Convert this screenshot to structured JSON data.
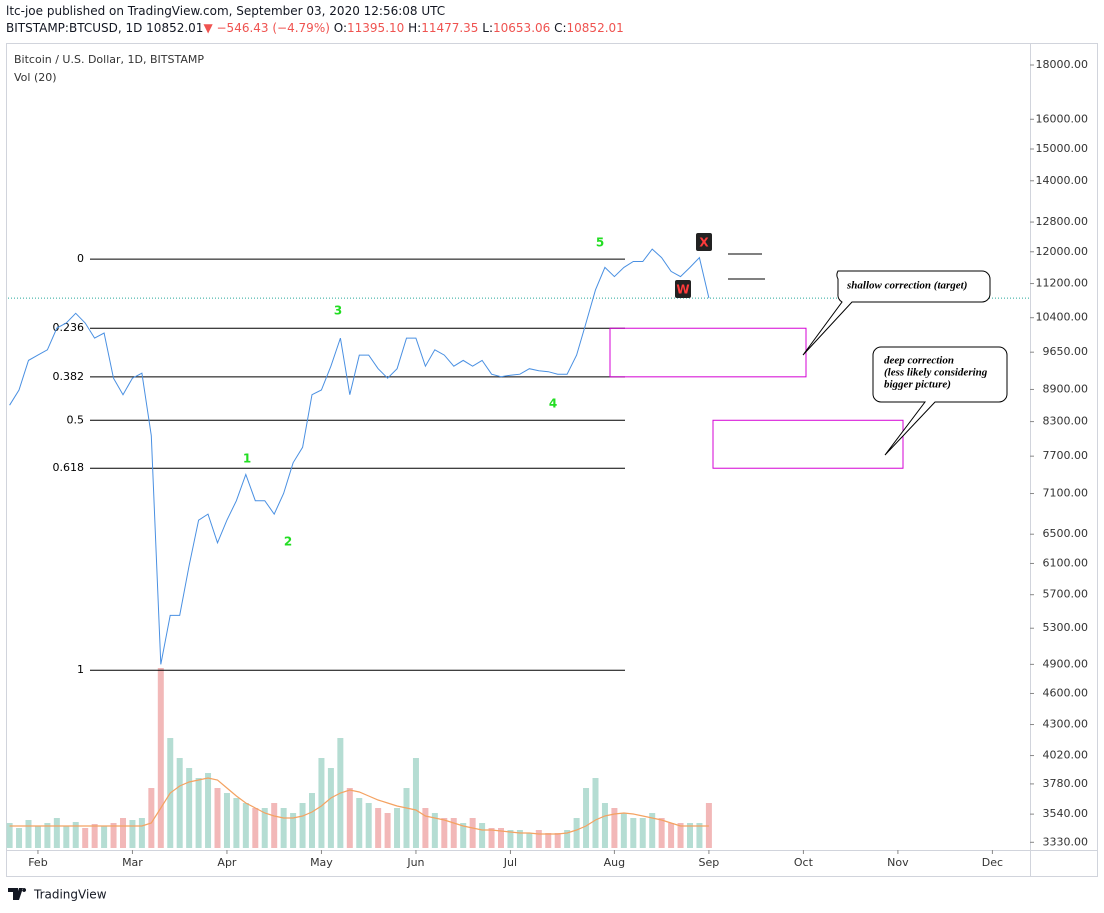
{
  "header": {
    "line1": "ltc-joe published on TradingView.com, September 03, 2020 12:56:08 UTC",
    "symbol": "BITSTAMP:BTCUSD, 1D",
    "last": "10852.01",
    "change": "−546.43 (−4.79%)",
    "ohlc": [
      {
        "key": "O:",
        "value": "11395.10"
      },
      {
        "key": "H:",
        "value": "11477.35"
      },
      {
        "key": "L:",
        "value": "10653.06"
      },
      {
        "key": "C:",
        "value": "10852.01"
      }
    ]
  },
  "chart_data": {
    "type": "line",
    "title": "Bitcoin / U.S. Dollar, 1D, BITSTAMP",
    "subtitle": "Vol (20)",
    "log_scale": true,
    "color": "#4a90e2",
    "categories": [
      null,
      null,
      null,
      "Feb",
      null,
      null,
      null,
      null,
      null,
      null,
      null,
      null,
      null,
      "Mar",
      null,
      null,
      null,
      null,
      null,
      null,
      null,
      null,
      null,
      "Apr",
      null,
      null,
      null,
      null,
      null,
      null,
      null,
      null,
      null,
      "May",
      null,
      null,
      null,
      null,
      null,
      null,
      null,
      null,
      null,
      "Jun",
      null,
      null,
      null,
      null,
      null,
      null,
      null,
      null,
      null,
      "Jul",
      null,
      null,
      null,
      null,
      null,
      null,
      null,
      null,
      null,
      null,
      "Aug",
      null,
      null,
      null,
      null,
      null,
      null,
      null,
      null,
      null,
      "Sep",
      null,
      null,
      null,
      null,
      null,
      null,
      null,
      null,
      null,
      "Oct",
      null,
      null,
      null,
      null,
      null,
      null,
      null,
      null,
      null,
      "Nov",
      null,
      null,
      null,
      null,
      null,
      null,
      null,
      null,
      null,
      "Dec"
    ],
    "values": [
      8600,
      8890,
      9480,
      9590,
      9700,
      10170,
      10280,
      10500,
      10280,
      9950,
      10060,
      9120,
      8800,
      9120,
      9220,
      8050,
      4900,
      5450,
      5450,
      6070,
      6700,
      6790,
      6380,
      6700,
      6990,
      7400,
      6990,
      6990,
      6790,
      7100,
      7590,
      7850,
      8800,
      8890,
      9360,
      9950,
      8800,
      9590,
      9590,
      9310,
      9120,
      9310,
      9950,
      9950,
      9360,
      9700,
      9590,
      9360,
      9480,
      9360,
      9480,
      9200,
      9150,
      9180,
      9200,
      9310,
      9270,
      9250,
      9200,
      9200,
      9590,
      10280,
      11050,
      11600,
      11370,
      11600,
      11750,
      11750,
      12070,
      11850,
      11500,
      11370,
      11600,
      11850,
      10852.01,
      null,
      null,
      null,
      null,
      null,
      null,
      null,
      null,
      null,
      null,
      null,
      null,
      null,
      null,
      null,
      null,
      null,
      null,
      null,
      null,
      null,
      null,
      null,
      null,
      null,
      null,
      null,
      null,
      null,
      null
    ],
    "ylim": [
      3289,
      18840
    ],
    "yticks": [
      {
        "value": 18000,
        "label": "18000.00"
      },
      {
        "value": 16000,
        "label": "16000.00"
      },
      {
        "value": 15000,
        "label": "15000.00"
      },
      {
        "value": 14000,
        "label": "14000.00"
      },
      {
        "value": 12800,
        "label": "12800.00"
      },
      {
        "value": 12000,
        "label": "12000.00"
      },
      {
        "value": 11200,
        "label": "11200.00"
      },
      {
        "value": 10400,
        "label": "10400.00"
      },
      {
        "value": 9650,
        "label": "9650.00"
      },
      {
        "value": 8900,
        "label": "8900.00"
      },
      {
        "value": 8300,
        "label": "8300.00"
      },
      {
        "value": 7700,
        "label": "7700.00"
      },
      {
        "value": 7100,
        "label": "7100.00"
      },
      {
        "value": 6500,
        "label": "6500.00"
      },
      {
        "value": 6100,
        "label": "6100.00"
      },
      {
        "value": 5700,
        "label": "5700.00"
      },
      {
        "value": 5300,
        "label": "5300.00"
      },
      {
        "value": 4900,
        "label": "4900.00"
      },
      {
        "value": 4600,
        "label": "4600.00"
      },
      {
        "value": 4300,
        "label": "4300.00"
      },
      {
        "value": 4020,
        "label": "4020.00"
      },
      {
        "value": 3780,
        "label": "3780.00"
      },
      {
        "value": 3540,
        "label": "3540.00"
      },
      {
        "value": 3330,
        "label": "3330.00"
      }
    ],
    "volume": {
      "ylim": [
        0,
        200
      ],
      "up_color": "#b5ddd3",
      "down_color": "#f2b8b8",
      "ma_color": "#f4a261",
      "values": [
        25,
        20,
        28,
        22,
        25,
        30,
        22,
        26,
        20,
        24,
        22,
        25,
        30,
        28,
        30,
        60,
        180,
        110,
        90,
        80,
        70,
        75,
        60,
        55,
        50,
        45,
        40,
        40,
        45,
        40,
        35,
        45,
        55,
        90,
        80,
        110,
        60,
        50,
        45,
        40,
        35,
        40,
        60,
        90,
        40,
        35,
        30,
        30,
        25,
        30,
        25,
        20,
        20,
        18,
        18,
        15,
        18,
        15,
        15,
        18,
        30,
        60,
        70,
        45,
        40,
        35,
        30,
        30,
        35,
        30,
        25,
        25,
        25,
        25,
        45,
        null,
        null,
        null,
        null,
        null,
        null,
        null,
        null,
        null,
        null,
        null,
        null,
        null,
        null,
        null,
        null,
        null,
        null,
        null,
        null,
        null,
        null,
        null,
        null,
        null,
        null,
        null,
        null,
        null,
        null
      ],
      "ma_values": [
        22,
        22,
        22,
        22,
        22,
        22,
        22,
        22,
        22,
        22,
        22,
        22,
        22,
        22,
        22,
        25,
        40,
        55,
        62,
        66,
        68,
        70,
        68,
        60,
        52,
        45,
        40,
        35,
        32,
        30,
        30,
        32,
        36,
        42,
        50,
        55,
        58,
        56,
        52,
        48,
        45,
        42,
        40,
        38,
        32,
        30,
        28,
        25,
        22,
        20,
        18,
        18,
        17,
        16,
        15,
        15,
        14,
        14,
        14,
        15,
        18,
        22,
        28,
        32,
        34,
        35,
        34,
        32,
        30,
        28,
        25,
        22,
        22,
        22,
        22,
        null,
        null,
        null,
        null,
        null,
        null,
        null,
        null,
        null,
        null,
        null,
        null,
        null,
        null,
        null,
        null,
        null,
        null,
        null,
        null,
        null,
        null,
        null,
        null,
        null,
        null,
        null,
        null,
        null,
        null
      ]
    },
    "fib_levels": [
      {
        "ratio": 0,
        "price": 11810
      },
      {
        "ratio": 0.236,
        "price": 10165
      },
      {
        "ratio": 0.382,
        "price": 9147
      },
      {
        "ratio": 0.5,
        "price": 8324
      },
      {
        "ratio": 0.618,
        "price": 7501
      },
      {
        "ratio": 1,
        "price": 4838
      }
    ],
    "wave_labels": [
      "1",
      "2",
      "3",
      "4",
      "5"
    ],
    "corrective_labels": [
      "X",
      "W"
    ],
    "callouts": {
      "shallow": "shallow correction (target)",
      "deep": [
        "deep correction",
        "(less likely considering",
        "bigger picture)"
      ]
    }
  },
  "footer": {
    "brand": "TradingView"
  }
}
